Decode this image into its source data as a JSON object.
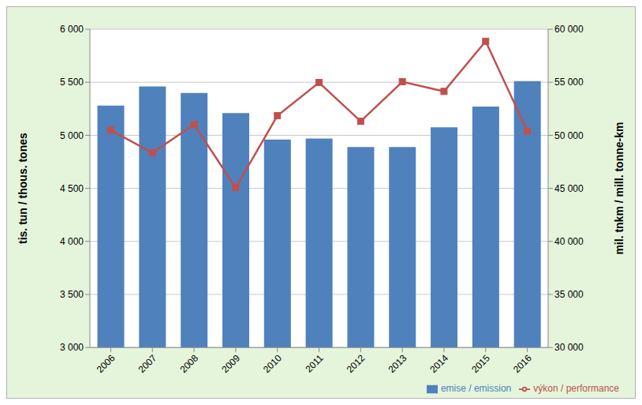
{
  "chart_data": {
    "type": "bar",
    "categories": [
      "2006",
      "2007",
      "2008",
      "2009",
      "2010",
      "2011",
      "2012",
      "2013",
      "2014",
      "2015",
      "2016"
    ],
    "y_label": "tis. tun / thous. tones",
    "y2_label": "mil. tnkm / mill. tonne-km",
    "series": [
      {
        "name": "emise / emission",
        "type": "bar",
        "color": "#4f81bd",
        "values": [
          5280,
          5460,
          5400,
          5210,
          4960,
          4970,
          4890,
          4890,
          5075,
          5270,
          5510
        ]
      },
      {
        "name": "výkon / performance",
        "type": "line",
        "axis": "y2",
        "color": "#c0504d",
        "marker": "square",
        "values": [
          50480,
          48350,
          51020,
          45080,
          51850,
          54975,
          51320,
          55050,
          54140,
          58860,
          50400
        ]
      }
    ],
    "ylim": [
      3000,
      6000
    ],
    "yticks": [
      {
        "value": 3000,
        "label": "3 000"
      },
      {
        "value": 3500,
        "label": "3 500"
      },
      {
        "value": 4000,
        "label": "4 000"
      },
      {
        "value": 4500,
        "label": "4 500"
      },
      {
        "value": 5000,
        "label": "5 000"
      },
      {
        "value": 5500,
        "label": "5 500"
      },
      {
        "value": 6000,
        "label": "6 000"
      }
    ],
    "y2lim": [
      30000,
      60000
    ],
    "y2ticks": [
      {
        "value": 30000,
        "label": "30 000"
      },
      {
        "value": 35000,
        "label": "35 000"
      },
      {
        "value": 40000,
        "label": "40 000"
      },
      {
        "value": 45000,
        "label": "45 000"
      },
      {
        "value": 50000,
        "label": "50 000"
      },
      {
        "value": 55000,
        "label": "55 000"
      },
      {
        "value": 60000,
        "label": "60 000"
      }
    ],
    "grid": true,
    "legend": "bottom"
  }
}
